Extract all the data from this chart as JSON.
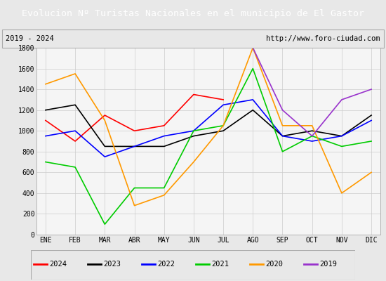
{
  "title": "Evolucion Nº Turistas Nacionales en el municipio de El Gastor",
  "subtitle_left": "2019 - 2024",
  "subtitle_right": "http://www.foro-ciudad.com",
  "title_bg_color": "#4472c4",
  "title_text_color": "#ffffff",
  "months": [
    "ENE",
    "FEB",
    "MAR",
    "ABR",
    "MAY",
    "JUN",
    "JUL",
    "AGO",
    "SEP",
    "OCT",
    "NOV",
    "DIC"
  ],
  "ylim": [
    0,
    1800
  ],
  "yticks": [
    0,
    200,
    400,
    600,
    800,
    1000,
    1200,
    1400,
    1600,
    1800
  ],
  "series": {
    "2024": {
      "color": "#ff0000",
      "values": [
        1100,
        900,
        1150,
        1000,
        1050,
        1350,
        1300,
        null,
        null,
        null,
        null,
        null
      ]
    },
    "2023": {
      "color": "#000000",
      "values": [
        1200,
        1250,
        850,
        850,
        850,
        950,
        1000,
        1200,
        950,
        1000,
        950,
        1150
      ]
    },
    "2022": {
      "color": "#0000ff",
      "values": [
        950,
        1000,
        750,
        850,
        950,
        1000,
        1250,
        1300,
        950,
        900,
        950,
        1100
      ]
    },
    "2021": {
      "color": "#00cc00",
      "values": [
        700,
        650,
        100,
        450,
        450,
        1000,
        1050,
        1600,
        800,
        950,
        850,
        900
      ]
    },
    "2020": {
      "color": "#ff9900",
      "values": [
        1450,
        1550,
        1100,
        280,
        380,
        700,
        1050,
        1800,
        1050,
        1050,
        400,
        600
      ]
    },
    "2019": {
      "color": "#9933cc",
      "values": [
        null,
        null,
        null,
        null,
        null,
        null,
        null,
        1800,
        1200,
        950,
        1300,
        1400
      ]
    }
  },
  "legend_order": [
    "2024",
    "2023",
    "2022",
    "2021",
    "2020",
    "2019"
  ],
  "bg_color": "#e8e8e8",
  "plot_bg_color": "#f5f5f5",
  "grid_color": "#cccccc",
  "border_color": "#aaaaaa",
  "title_fontsize": 9.5,
  "subtitle_fontsize": 7.5,
  "tick_fontsize": 7,
  "legend_fontsize": 7.5
}
